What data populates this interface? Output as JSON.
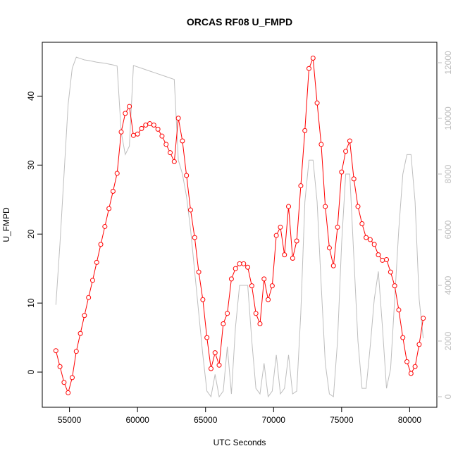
{
  "chart_data": {
    "type": "line",
    "title": "ORCAS RF08 U_FMPD",
    "xlabel": "UTC Seconds",
    "ylabel": "U_FMPD",
    "x": [
      54000,
      54300,
      54600,
      54900,
      55200,
      55500,
      55800,
      56100,
      56400,
      56700,
      57000,
      57300,
      57600,
      57900,
      58200,
      58500,
      58800,
      59100,
      59400,
      59700,
      60000,
      60300,
      60600,
      60900,
      61200,
      61500,
      61800,
      62100,
      62400,
      62700,
      63000,
      63300,
      63600,
      63900,
      64200,
      64500,
      64800,
      65100,
      65400,
      65700,
      66000,
      66300,
      66600,
      66900,
      67200,
      67500,
      67800,
      68100,
      68400,
      68700,
      69000,
      69300,
      69600,
      69900,
      70200,
      70500,
      70800,
      71100,
      71400,
      71700,
      72000,
      72300,
      72600,
      72900,
      73200,
      73500,
      73800,
      74100,
      74400,
      74700,
      75000,
      75300,
      75600,
      75900,
      76200,
      76500,
      76800,
      77100,
      77400,
      77700,
      78000,
      78300,
      78600,
      78900,
      79200,
      79500,
      79800,
      80100,
      80400,
      80700,
      81000
    ],
    "series": [
      {
        "color": "#bebebe",
        "axis": "y2",
        "values": [
          3300,
          5500,
          8000,
          10500,
          11800,
          12200,
          12150,
          12100,
          12080,
          12050,
          12020,
          12000,
          11980,
          11950,
          11920,
          11880,
          9500,
          8700,
          9000,
          11900,
          11850,
          11800,
          11750,
          11700,
          11650,
          11600,
          11550,
          11500,
          11450,
          11400,
          8500,
          8000,
          7200,
          6000,
          4500,
          3000,
          1500,
          200,
          0,
          800,
          0,
          200,
          1800,
          100,
          2500,
          4000,
          4000,
          4000,
          2000,
          300,
          100,
          1200,
          0,
          200,
          1500,
          100,
          300,
          1500,
          100,
          200,
          3000,
          7000,
          8500,
          8500,
          7000,
          4000,
          1200,
          100,
          0,
          2000,
          5500,
          8000,
          8000,
          5000,
          2000,
          300,
          300,
          1800,
          3500,
          4500,
          2500,
          300,
          1000,
          3500,
          6000,
          8000,
          8700,
          8700,
          7000,
          3500,
          2100
        ]
      },
      {
        "color": "#ff0000",
        "markers": true,
        "values": [
          3.1,
          0.8,
          -1.5,
          -3.0,
          -0.8,
          3.0,
          5.6,
          8.2,
          10.8,
          13.3,
          15.9,
          18.5,
          21.1,
          23.7,
          26.2,
          28.8,
          34.8,
          37.5,
          38.5,
          34.3,
          34.5,
          35.3,
          35.8,
          36.0,
          35.8,
          35.2,
          34.2,
          33.0,
          31.8,
          30.5,
          36.8,
          33.5,
          28.5,
          23.5,
          19.5,
          14.5,
          10.5,
          5.0,
          0.5,
          2.8,
          1.0,
          7.0,
          8.5,
          13.5,
          15.0,
          15.7,
          15.7,
          15.2,
          12.5,
          8.5,
          7.0,
          13.5,
          10.5,
          12.5,
          19.8,
          21.0,
          17.0,
          24.0,
          16.5,
          19.0,
          27.0,
          35.0,
          44.0,
          45.5,
          39.0,
          33.0,
          24.0,
          18.0,
          15.4,
          21.0,
          29.0,
          32.0,
          33.5,
          28.0,
          24.0,
          21.5,
          19.5,
          19.2,
          18.5,
          17.0,
          16.2,
          16.3,
          14.5,
          12.5,
          9.0,
          5.0,
          1.5,
          -0.2,
          0.8,
          4.0,
          7.8
        ]
      }
    ],
    "xlim": [
      53000,
      82000
    ],
    "xticks": [
      55000,
      60000,
      65000,
      70000,
      75000,
      80000
    ],
    "ylim": [
      -5.1,
      47.8
    ],
    "yticks": [
      0,
      10,
      20,
      30,
      40
    ],
    "y2lim": [
      -380,
      12734
    ],
    "y2ticks": [
      0,
      2000,
      4000,
      6000,
      8000,
      10000,
      12000
    ],
    "y2color": "#bebebe"
  }
}
